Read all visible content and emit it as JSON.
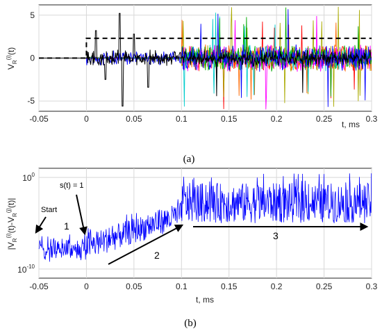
{
  "chart_data": [
    {
      "type": "line",
      "panel_label": "(a)",
      "xlabel": "t, ms",
      "ylabel": "V_R^(i)(t)",
      "xlim": [
        -0.05,
        0.3
      ],
      "ylim": [
        -6.2,
        6.2
      ],
      "xticks": [
        "-0.05",
        "0",
        "0.05",
        "0.1",
        "0.15",
        "0.2",
        "0.25",
        "0.3"
      ],
      "yticks": [
        "5",
        "0",
        "-5"
      ],
      "grid": true,
      "series": [
        {
          "color": "#000000",
          "style": "dashed",
          "x": [
            -0.05,
            0.0,
            0.0,
            0.3
          ],
          "y": [
            0,
            0,
            2.3,
            2.3
          ]
        },
        {
          "color": "#000000",
          "style": "solid",
          "description_points": [
            [
              0.0,
              0
            ],
            [
              0.01,
              3.2
            ],
            [
              0.02,
              -2.5
            ],
            [
              0.035,
              5.2
            ],
            [
              0.038,
              -5.6
            ],
            [
              0.05,
              2.8
            ],
            [
              0.065,
              -3.4
            ],
            [
              0.1,
              0
            ]
          ]
        }
      ],
      "colors": [
        "#000000",
        "#0000ff",
        "#00aa00",
        "#ff00ff",
        "#00cccc",
        "#ff6600",
        "#aaaa00",
        "#ff0000"
      ]
    },
    {
      "type": "line",
      "panel_label": "(b)",
      "xlabel": "t, ms",
      "ylabel": "|V_R^(i)(t)-V_R^(j)(t)|",
      "xlim": [
        -0.05,
        0.3
      ],
      "ylim_exponent": [
        -11,
        1
      ],
      "yscale": "log",
      "xticks": [
        "-0.05",
        "0",
        "0.05",
        "0.1",
        "0.15",
        "0.2",
        "0.25",
        "0.3"
      ],
      "yticks": [
        "10^0",
        "10^-10"
      ],
      "grid": true,
      "color": "#0000ff",
      "segments": [
        {
          "from": -0.05,
          "to": 0.0,
          "log_low": -9.5,
          "log_high": -6.5
        },
        {
          "from": 0.0,
          "to": 0.1,
          "log_low": -9.0,
          "log_high": -2.5
        },
        {
          "from": 0.1,
          "to": 0.3,
          "log_low": -5.0,
          "log_high": 0.5
        }
      ],
      "annotations": [
        {
          "text": "Start"
        },
        {
          "text": "s(t) = 1"
        },
        {
          "text": "1"
        },
        {
          "text": "2"
        },
        {
          "text": "3"
        }
      ]
    }
  ]
}
